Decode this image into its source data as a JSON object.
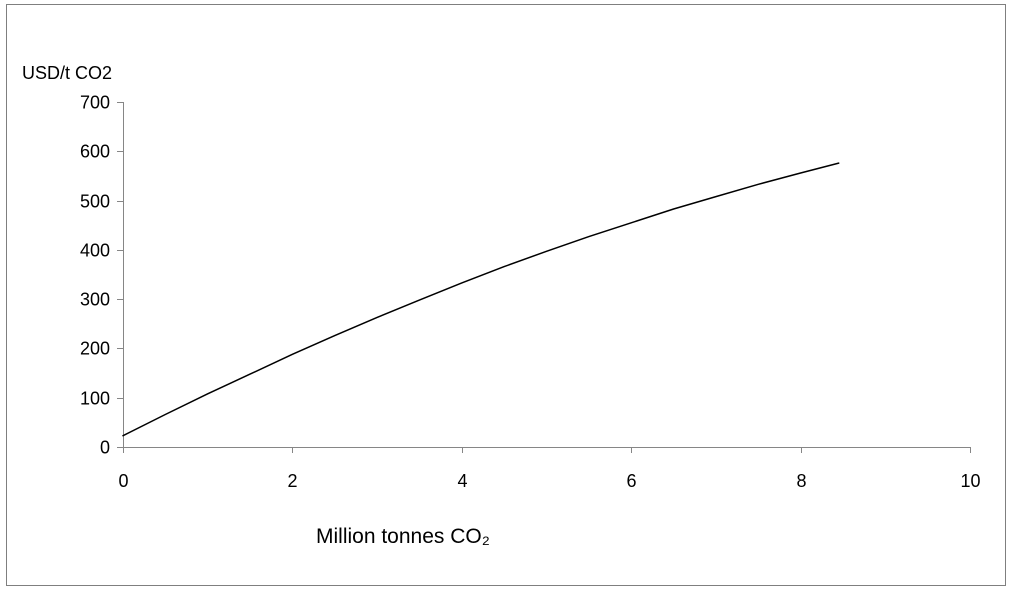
{
  "chart_data": {
    "type": "line",
    "title": "",
    "xlabel": "Million tonnes CO₂",
    "ylabel": "USD/t CO2",
    "xlim": [
      0,
      10
    ],
    "ylim": [
      0,
      700
    ],
    "xticks": [
      0,
      2,
      4,
      6,
      8,
      10
    ],
    "yticks": [
      0,
      100,
      200,
      300,
      400,
      500,
      600,
      700
    ],
    "grid": false,
    "legend": "none",
    "line_color": "#000000",
    "series": [
      {
        "x": [
          0,
          0.5,
          1,
          1.5,
          2,
          2.5,
          3,
          3.5,
          4,
          4.5,
          5,
          5.5,
          6,
          6.5,
          7,
          7.5,
          8,
          8.45
        ],
        "y": [
          23,
          66,
          108,
          148,
          188,
          226,
          263,
          298,
          333,
          366,
          397,
          427,
          455,
          483,
          508,
          533,
          556,
          576
        ]
      }
    ]
  }
}
